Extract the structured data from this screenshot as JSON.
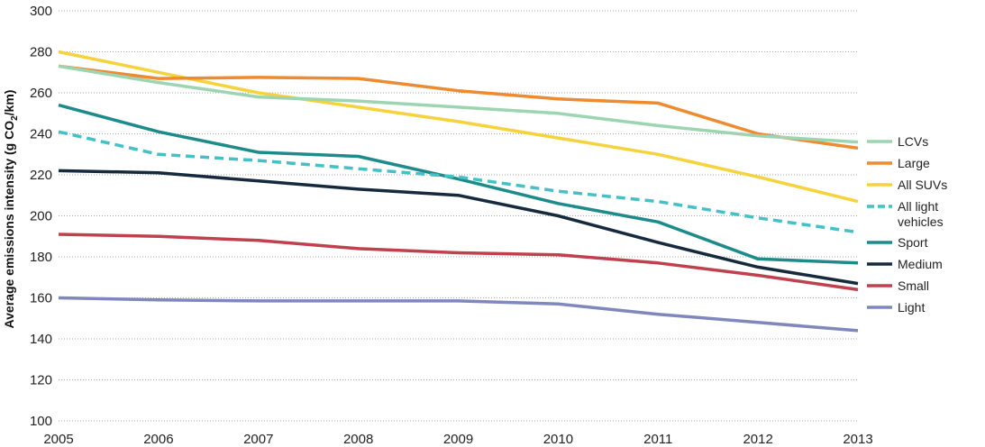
{
  "chart_data": {
    "type": "line",
    "title": "",
    "xlabel": "",
    "ylabel": "Average emissions intensity (g CO",
    "ylabel_sub": "2",
    "ylabel_tail": "/km)",
    "x": [
      2005,
      2006,
      2007,
      2008,
      2009,
      2010,
      2011,
      2012,
      2013
    ],
    "ylim": [
      100,
      300
    ],
    "yticks": [
      100,
      120,
      140,
      160,
      180,
      200,
      220,
      240,
      260,
      280,
      300
    ],
    "grid": true,
    "legend_position": "right",
    "series": [
      {
        "name": "LCVs",
        "color": "#9dd5b0",
        "dashed": false,
        "values": [
          273,
          265,
          258,
          256,
          253,
          250,
          244,
          239,
          236
        ]
      },
      {
        "name": "Large",
        "color": "#ee8a2f",
        "dashed": false,
        "values": [
          273,
          267,
          267.5,
          267,
          261,
          257,
          255,
          240,
          233
        ]
      },
      {
        "name": "All SUVs",
        "color": "#f6d33c",
        "dashed": false,
        "values": [
          280,
          270,
          260,
          253,
          246,
          238,
          230,
          219,
          207
        ]
      },
      {
        "name": "All light vehicles",
        "color": "#43c1c6",
        "dashed": true,
        "values": [
          241,
          230,
          227,
          223,
          219,
          212,
          207,
          199,
          192
        ]
      },
      {
        "name": "Sport",
        "color": "#1e8a8a",
        "dashed": false,
        "values": [
          254,
          241,
          231,
          229,
          218,
          206,
          197,
          179,
          177
        ]
      },
      {
        "name": "Medium",
        "color": "#152a3c",
        "dashed": false,
        "values": [
          222,
          221,
          217,
          213,
          210,
          200,
          187,
          175,
          167
        ]
      },
      {
        "name": "Small",
        "color": "#c0414e",
        "dashed": false,
        "values": [
          191,
          190,
          188,
          184,
          182,
          181,
          177,
          171,
          164
        ]
      },
      {
        "name": "Light",
        "color": "#7f87bd",
        "dashed": false,
        "values": [
          160,
          159,
          158.5,
          158.5,
          158.5,
          157,
          152,
          148,
          144
        ]
      }
    ],
    "legend": [
      {
        "lines": [
          "LCVs"
        ]
      },
      {
        "lines": [
          "Large"
        ]
      },
      {
        "lines": [
          "All SUVs"
        ]
      },
      {
        "lines": [
          "All light",
          "vehicles"
        ]
      },
      {
        "lines": [
          "Sport"
        ]
      },
      {
        "lines": [
          "Medium"
        ]
      },
      {
        "lines": [
          "Small"
        ]
      },
      {
        "lines": [
          "Light"
        ]
      }
    ]
  }
}
